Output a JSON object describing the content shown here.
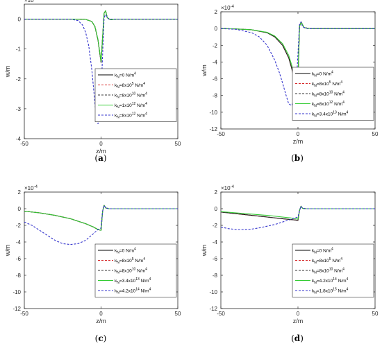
{
  "chart_data": [
    {
      "id": "a",
      "type": "line",
      "caption": "a",
      "multiplier": "×10-3",
      "xlabel": "z/m",
      "ylabel": "w/m",
      "xlim": [
        -50,
        50
      ],
      "ylim": [
        -4,
        0.5
      ],
      "xticks": [
        -50,
        0,
        50
      ],
      "yticks": [
        0,
        -1,
        -2,
        -3,
        -4
      ],
      "legend": "bottom-right",
      "series": [
        {
          "name": "kN=0 N/m4",
          "k_mant": "0",
          "k_exp": "",
          "color": "#000000",
          "dash": "solid",
          "x": [
            -50,
            -15,
            -10,
            -6,
            -4,
            -2,
            0,
            1,
            2,
            3,
            4,
            6,
            10,
            50
          ],
          "y": [
            0,
            0,
            -0.01,
            -0.08,
            -0.25,
            -0.7,
            -1.45,
            -0.6,
            0.2,
            0.28,
            0.05,
            -0.02,
            0,
            0
          ]
        },
        {
          "name": "kN=8x105 N/m4",
          "k_mant": "8x10",
          "k_exp": "5",
          "color": "#d62728",
          "dash": "dashed",
          "x": [
            -50,
            -15,
            -10,
            -6,
            -4,
            -2,
            0,
            1,
            2,
            3,
            4,
            6,
            10,
            50
          ],
          "y": [
            0,
            0,
            -0.01,
            -0.08,
            -0.25,
            -0.7,
            -1.45,
            -0.6,
            0.2,
            0.28,
            0.05,
            -0.02,
            0,
            0
          ]
        },
        {
          "name": "kN=8x1010 N/m4",
          "k_mant": "8x10",
          "k_exp": "10",
          "color": "#333333",
          "dash": "dashed",
          "x": [
            -50,
            -15,
            -10,
            -6,
            -4,
            -2,
            0,
            1,
            2,
            3,
            4,
            6,
            10,
            50
          ],
          "y": [
            0,
            0,
            -0.01,
            -0.08,
            -0.25,
            -0.7,
            -1.45,
            -0.6,
            0.2,
            0.28,
            0.05,
            -0.02,
            0,
            0
          ]
        },
        {
          "name": "kN=1x1012 N/m4",
          "k_mant": "1x10",
          "k_exp": "12",
          "color": "#33cc33",
          "dash": "solid",
          "x": [
            -50,
            -15,
            -10,
            -6,
            -4,
            -2,
            0,
            1,
            2,
            3,
            4,
            6,
            10,
            50
          ],
          "y": [
            0,
            0,
            -0.01,
            -0.08,
            -0.25,
            -0.68,
            -1.42,
            -0.6,
            0.2,
            0.28,
            0.05,
            -0.02,
            0,
            0
          ]
        },
        {
          "name": "kN=8x1012 N/m4",
          "k_mant": "8x10",
          "k_exp": "12",
          "color": "#3333cc",
          "dash": "dashed",
          "x": [
            -50,
            -20,
            -15,
            -12,
            -10,
            -8,
            -6,
            -4,
            -3,
            -2,
            -1,
            0,
            1,
            2,
            3,
            5,
            8,
            50
          ],
          "y": [
            0,
            0,
            -0.05,
            -0.2,
            -0.45,
            -0.9,
            -1.7,
            -2.8,
            -3.3,
            -3.5,
            -3.3,
            -2.5,
            -1.2,
            0.05,
            0.15,
            0,
            0,
            0
          ]
        }
      ]
    },
    {
      "id": "b",
      "type": "line",
      "caption": "b",
      "multiplier": "×10-4",
      "xlabel": "z/m",
      "ylabel": "w/m",
      "xlim": [
        -50,
        50
      ],
      "ylim": [
        -12,
        2
      ],
      "xticks": [
        -50,
        0,
        50
      ],
      "yticks": [
        2,
        0,
        -2,
        -4,
        -6,
        -8,
        -10,
        -12
      ],
      "legend": "bottom-right",
      "series": [
        {
          "name": "kN=0 N/m4",
          "k_mant": "0",
          "k_exp": "",
          "color": "#000000",
          "dash": "solid",
          "x": [
            -50,
            -40,
            -30,
            -20,
            -15,
            -10,
            -6,
            -4,
            -2,
            -1,
            0,
            1,
            2,
            4,
            8,
            50
          ],
          "y": [
            0,
            -0.05,
            -0.15,
            -0.5,
            -1.0,
            -2.0,
            -3.5,
            -4.8,
            -6.5,
            -7.2,
            -6.5,
            0.2,
            0.8,
            0.1,
            0,
            0
          ]
        },
        {
          "name": "kN=8x105 N/m4",
          "k_mant": "8x10",
          "k_exp": "5",
          "color": "#d62728",
          "dash": "dashed",
          "x": [
            -50,
            -40,
            -30,
            -20,
            -15,
            -10,
            -6,
            -4,
            -2,
            -1,
            0,
            1,
            2,
            4,
            8,
            50
          ],
          "y": [
            0,
            -0.05,
            -0.15,
            -0.5,
            -1.0,
            -2.0,
            -3.5,
            -4.8,
            -6.5,
            -7.2,
            -6.5,
            0.2,
            0.8,
            0.1,
            0,
            0
          ]
        },
        {
          "name": "kN=8x1010 N/m4",
          "k_mant": "8x10",
          "k_exp": "10",
          "color": "#333333",
          "dash": "dashed",
          "x": [
            -50,
            -40,
            -30,
            -20,
            -15,
            -10,
            -6,
            -4,
            -2,
            -1,
            0,
            1,
            2,
            4,
            8,
            50
          ],
          "y": [
            0,
            -0.05,
            -0.15,
            -0.5,
            -1.0,
            -2.0,
            -3.5,
            -4.8,
            -6.5,
            -7.2,
            -6.5,
            0.2,
            0.8,
            0.1,
            0,
            0
          ]
        },
        {
          "name": "kN=8x1012 N/m4",
          "k_mant": "8x10",
          "k_exp": "12",
          "color": "#33cc33",
          "dash": "solid",
          "x": [
            -50,
            -40,
            -30,
            -20,
            -15,
            -10,
            -6,
            -4,
            -2,
            -1,
            0,
            1,
            2,
            4,
            8,
            50
          ],
          "y": [
            0,
            -0.05,
            -0.15,
            -0.45,
            -0.9,
            -1.8,
            -3.2,
            -4.4,
            -6.0,
            -6.7,
            -6.3,
            0.2,
            0.8,
            0.1,
            0,
            0
          ]
        },
        {
          "name": "kN=3.4x1013 N/m4",
          "k_mant": "3.4x10",
          "k_exp": "13",
          "color": "#3333cc",
          "dash": "dashed",
          "x": [
            -50,
            -40,
            -30,
            -25,
            -20,
            -15,
            -12,
            -10,
            -8,
            -6,
            -4,
            -2,
            -1,
            0,
            1,
            2,
            3,
            6,
            50
          ],
          "y": [
            0,
            -0.1,
            -0.5,
            -1.0,
            -2.0,
            -3.8,
            -5.3,
            -6.5,
            -7.8,
            -9.0,
            -9.2,
            -8.0,
            -6.5,
            -3.0,
            0.5,
            0.8,
            0.2,
            0,
            0
          ]
        }
      ]
    },
    {
      "id": "c",
      "type": "line",
      "caption": "c",
      "multiplier": "×10-4",
      "xlabel": "z/m",
      "ylabel": "w/m",
      "xlim": [
        -50,
        50
      ],
      "ylim": [
        -12,
        2
      ],
      "xticks": [
        -50,
        0,
        50
      ],
      "yticks": [
        2,
        0,
        -2,
        -4,
        -6,
        -8,
        -10,
        -12
      ],
      "legend": "bottom-right",
      "series": [
        {
          "name": "kN=0 N/m4",
          "k_mant": "0",
          "k_exp": "",
          "color": "#000000",
          "dash": "solid",
          "x": [
            -50,
            -40,
            -30,
            -20,
            -10,
            -5,
            -2,
            0,
            1,
            2,
            3,
            5,
            50
          ],
          "y": [
            -0.3,
            -0.5,
            -0.8,
            -1.2,
            -1.8,
            -2.2,
            -2.5,
            -2.6,
            -0.3,
            0.4,
            0.1,
            0,
            0
          ]
        },
        {
          "name": "kN=8x105 N/m4",
          "k_mant": "8x10",
          "k_exp": "5",
          "color": "#d62728",
          "dash": "dashed",
          "x": [
            -50,
            -40,
            -30,
            -20,
            -10,
            -5,
            -2,
            0,
            1,
            2,
            3,
            5,
            50
          ],
          "y": [
            -0.3,
            -0.5,
            -0.8,
            -1.2,
            -1.8,
            -2.2,
            -2.5,
            -2.6,
            -0.3,
            0.4,
            0.1,
            0,
            0
          ]
        },
        {
          "name": "kN=8x1010 N/m4",
          "k_mant": "8x10",
          "k_exp": "10",
          "color": "#333333",
          "dash": "dashed",
          "x": [
            -50,
            -40,
            -30,
            -20,
            -10,
            -5,
            -2,
            0,
            1,
            2,
            3,
            5,
            50
          ],
          "y": [
            -0.3,
            -0.5,
            -0.8,
            -1.2,
            -1.8,
            -2.2,
            -2.5,
            -2.6,
            -0.3,
            0.4,
            0.1,
            0,
            0
          ]
        },
        {
          "name": "kN=3.4x1013 N/m4",
          "k_mant": "3.4x10",
          "k_exp": "13",
          "color": "#33cc33",
          "dash": "solid",
          "x": [
            -50,
            -40,
            -30,
            -20,
            -10,
            -5,
            -2,
            0,
            1,
            2,
            3,
            5,
            50
          ],
          "y": [
            -0.3,
            -0.5,
            -0.8,
            -1.2,
            -1.8,
            -2.2,
            -2.5,
            -2.6,
            -0.3,
            0.4,
            0.1,
            0,
            0
          ]
        },
        {
          "name": "kN=4.2x1014 N/m4",
          "k_mant": "4.2x10",
          "k_exp": "14",
          "color": "#3333cc",
          "dash": "dashed",
          "x": [
            -50,
            -45,
            -40,
            -35,
            -30,
            -25,
            -20,
            -15,
            -10,
            -5,
            -2,
            0,
            1,
            2,
            3,
            5,
            50
          ],
          "y": [
            -1.6,
            -2.0,
            -2.6,
            -3.2,
            -3.8,
            -4.2,
            -4.3,
            -4.2,
            -3.8,
            -3.0,
            -2.5,
            -2.3,
            -0.3,
            0.4,
            0.1,
            0,
            0
          ]
        }
      ]
    },
    {
      "id": "d",
      "type": "line",
      "caption": "d",
      "multiplier": "×10-4",
      "xlabel": "z/m",
      "ylabel": "w/m",
      "xlim": [
        -50,
        50
      ],
      "ylim": [
        -12,
        2
      ],
      "xticks": [
        -50,
        0,
        50
      ],
      "yticks": [
        2,
        0,
        -2,
        -4,
        -6,
        -8,
        -10,
        -12
      ],
      "legend": "bottom-right",
      "series": [
        {
          "name": "kN=0 N/m4",
          "k_mant": "0",
          "k_exp": "",
          "color": "#000000",
          "dash": "solid",
          "x": [
            -50,
            -40,
            -30,
            -20,
            -10,
            -5,
            -2,
            0,
            1,
            2,
            3,
            5,
            50
          ],
          "y": [
            -0.4,
            -0.6,
            -0.8,
            -1.0,
            -1.2,
            -1.3,
            -1.35,
            -1.4,
            -0.2,
            0.3,
            0.05,
            0,
            0
          ]
        },
        {
          "name": "kN=8x105 N/m4",
          "k_mant": "8x10",
          "k_exp": "5",
          "color": "#d62728",
          "dash": "dashed",
          "x": [
            -50,
            -40,
            -30,
            -20,
            -10,
            -5,
            -2,
            0,
            1,
            2,
            3,
            5,
            50
          ],
          "y": [
            -0.4,
            -0.6,
            -0.8,
            -1.0,
            -1.2,
            -1.3,
            -1.35,
            -1.4,
            -0.2,
            0.3,
            0.05,
            0,
            0
          ]
        },
        {
          "name": "kN=8x1010 N/m4",
          "k_mant": "8x10",
          "k_exp": "10",
          "color": "#333333",
          "dash": "dashed",
          "x": [
            -50,
            -40,
            -30,
            -20,
            -10,
            -5,
            -2,
            0,
            1,
            2,
            3,
            5,
            50
          ],
          "y": [
            -0.4,
            -0.6,
            -0.8,
            -1.0,
            -1.2,
            -1.3,
            -1.35,
            -1.4,
            -0.2,
            0.3,
            0.05,
            0,
            0
          ]
        },
        {
          "name": "kN=4.2x1014 N/m4",
          "k_mant": "4.2x10",
          "k_exp": "14",
          "color": "#33cc33",
          "dash": "solid",
          "x": [
            -50,
            -40,
            -30,
            -20,
            -10,
            -5,
            -2,
            0,
            1,
            2,
            3,
            5,
            50
          ],
          "y": [
            -0.35,
            -0.5,
            -0.65,
            -0.8,
            -1.0,
            -1.1,
            -1.2,
            -1.25,
            -0.2,
            0.3,
            0.05,
            0,
            0
          ]
        },
        {
          "name": "kN=1.8x1015 N/m4",
          "k_mant": "1.8x10",
          "k_exp": "15",
          "color": "#3333cc",
          "dash": "dashed",
          "x": [
            -50,
            -45,
            -40,
            -35,
            -30,
            -25,
            -20,
            -15,
            -10,
            -5,
            -2,
            0,
            1,
            2,
            3,
            5,
            50
          ],
          "y": [
            -2.2,
            -2.4,
            -2.5,
            -2.5,
            -2.45,
            -2.3,
            -2.1,
            -1.9,
            -1.6,
            -1.3,
            -1.1,
            -1.0,
            -0.2,
            0.3,
            0.05,
            0,
            0
          ]
        }
      ]
    }
  ]
}
